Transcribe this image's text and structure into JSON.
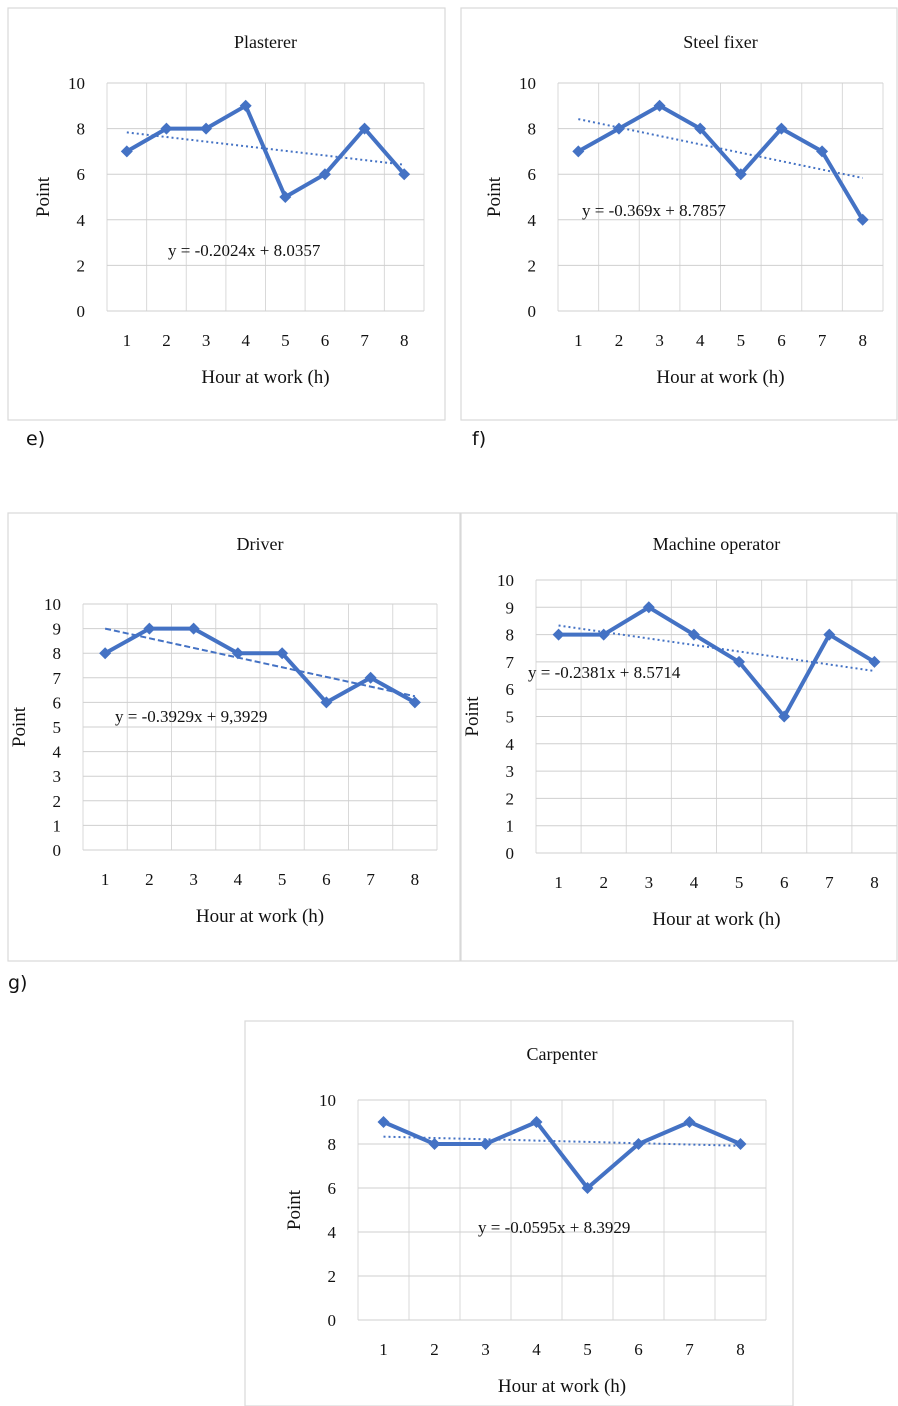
{
  "panel_labels": {
    "e": "e)",
    "f": "f)",
    "g": "g)"
  },
  "chart_data": [
    {
      "type": "line",
      "title": "Plasterer",
      "xlabel": "Hour at work (h)",
      "ylabel": "Point",
      "x": [
        1,
        2,
        3,
        4,
        5,
        6,
        7,
        8
      ],
      "ylim": [
        0,
        10
      ],
      "yticks": [
        0,
        2,
        4,
        6,
        8,
        10
      ],
      "series": [
        {
          "values": [
            7,
            8,
            8,
            9,
            5,
            6,
            8,
            6
          ],
          "color": "#4472c4"
        }
      ],
      "trendline": {
        "slope": -0.2024,
        "intercept": 8.0357,
        "style": "dotted"
      },
      "equation": "y = -0.2024x + 8.0357"
    },
    {
      "type": "line",
      "title": "Steel fixer",
      "xlabel": "Hour at work (h)",
      "ylabel": "Point",
      "x": [
        1,
        2,
        3,
        4,
        5,
        6,
        7,
        8
      ],
      "ylim": [
        0,
        10
      ],
      "yticks": [
        0,
        2,
        4,
        6,
        8,
        10
      ],
      "series": [
        {
          "values": [
            7,
            8,
            9,
            8,
            6,
            8,
            7,
            4
          ],
          "color": "#4472c4"
        }
      ],
      "trendline": {
        "slope": -0.369,
        "intercept": 8.7857,
        "style": "dotted"
      },
      "equation": "y = -0.369x + 8.7857"
    },
    {
      "type": "line",
      "title": "Driver",
      "xlabel": "Hour at work (h)",
      "ylabel": "Point",
      "x": [
        1,
        2,
        3,
        4,
        5,
        6,
        7,
        8
      ],
      "ylim": [
        0,
        10
      ],
      "yticks": [
        0,
        1,
        2,
        3,
        4,
        5,
        6,
        7,
        8,
        9,
        10
      ],
      "series": [
        {
          "values": [
            8,
            9,
            9,
            8,
            8,
            6,
            7,
            6
          ],
          "color": "#4472c4"
        }
      ],
      "trendline": {
        "slope": -0.3929,
        "intercept": 9.3929,
        "style": "dashed"
      },
      "equation": "y = -0.3929x + 9,3929"
    },
    {
      "type": "line",
      "title": "Machine operator",
      "xlabel": "Hour at work (h)",
      "ylabel": "Point",
      "x": [
        1,
        2,
        3,
        4,
        5,
        6,
        7,
        8
      ],
      "ylim": [
        0,
        10
      ],
      "yticks": [
        0,
        1,
        2,
        3,
        4,
        5,
        6,
        7,
        8,
        9,
        10
      ],
      "series": [
        {
          "values": [
            8,
            8,
            9,
            8,
            7,
            5,
            8,
            7
          ],
          "color": "#4472c4"
        }
      ],
      "trendline": {
        "slope": -0.2381,
        "intercept": 8.5714,
        "style": "dotted"
      },
      "equation": "y = -0.2381x + 8.5714"
    },
    {
      "type": "line",
      "title": "Carpenter",
      "xlabel": "Hour at work (h)",
      "ylabel": "Point",
      "x": [
        1,
        2,
        3,
        4,
        5,
        6,
        7,
        8
      ],
      "ylim": [
        0,
        10
      ],
      "yticks": [
        0,
        2,
        4,
        6,
        8,
        10
      ],
      "series": [
        {
          "values": [
            9,
            8,
            8,
            9,
            6,
            8,
            9,
            8
          ],
          "color": "#4472c4"
        }
      ],
      "trendline": {
        "slope": -0.0595,
        "intercept": 8.3929,
        "style": "dotted"
      },
      "equation": "y = -0.0595x + 8.3929"
    }
  ]
}
